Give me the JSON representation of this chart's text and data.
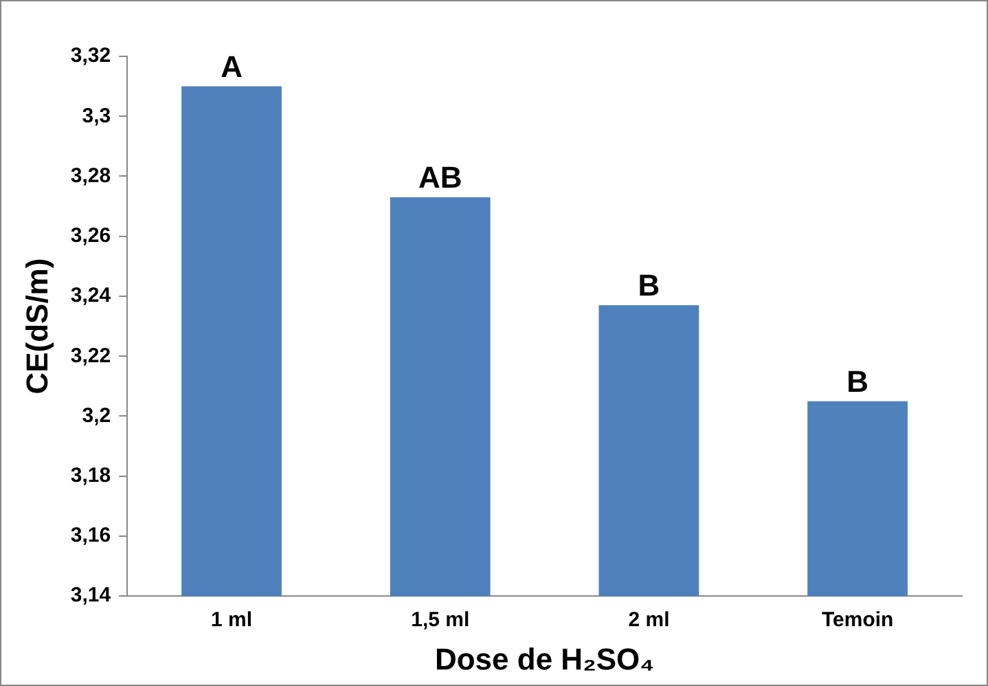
{
  "chart_data": {
    "type": "bar",
    "xlabel": "Dose de H₂SO₄",
    "ylabel": "CE(dS/m)",
    "categories": [
      "1 ml",
      "1,5 ml",
      "2 ml",
      "Temoin"
    ],
    "values": [
      3.31,
      3.273,
      3.237,
      3.205
    ],
    "color": "#4f81bd",
    "ylim": [
      3.14,
      3.32
    ],
    "yticks": [
      {
        "value": 3.14,
        "label": "3,14"
      },
      {
        "value": 3.16,
        "label": "3,16"
      },
      {
        "value": 3.18,
        "label": "3,18"
      },
      {
        "value": 3.2,
        "label": "3,2"
      },
      {
        "value": 3.22,
        "label": "3,22"
      },
      {
        "value": 3.24,
        "label": "3,24"
      },
      {
        "value": 3.26,
        "label": "3,26"
      },
      {
        "value": 3.28,
        "label": "3,28"
      },
      {
        "value": 3.3,
        "label": "3,3"
      },
      {
        "value": 3.32,
        "label": "3,32"
      }
    ],
    "annotations": [
      {
        "text": "A",
        "x": "1 ml",
        "y": 3.31
      },
      {
        "text": "AB",
        "x": "1,5 ml",
        "y": 3.273
      },
      {
        "text": "B",
        "x": "2 ml",
        "y": 3.237
      },
      {
        "text": "B",
        "x": "Temoin",
        "y": 3.205
      }
    ],
    "grid": false,
    "legend": false
  }
}
